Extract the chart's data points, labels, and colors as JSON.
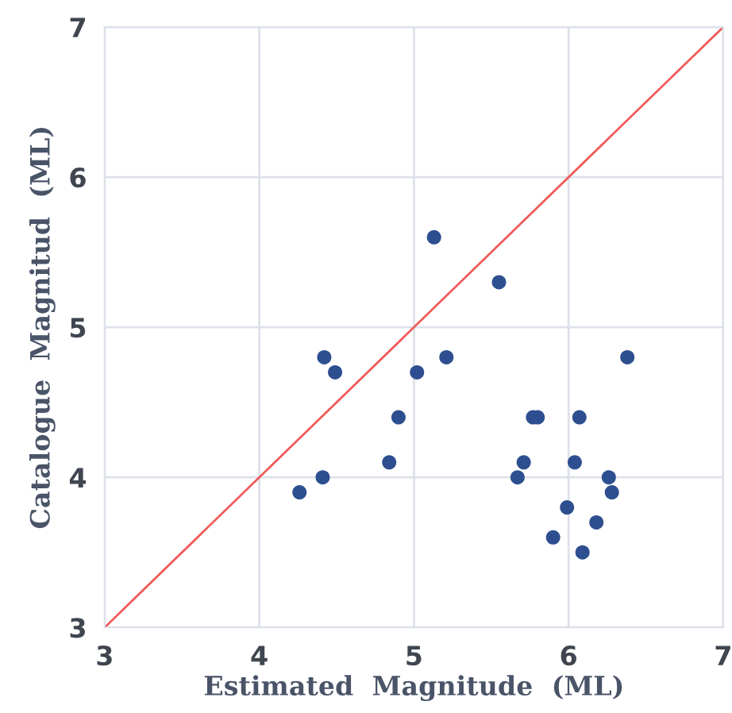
{
  "chart_data": {
    "type": "scatter",
    "xlabel": "Estimated  Magnitude  (ML)",
    "ylabel": "Catalogue  Magnitud  (ML)",
    "xlim": [
      3,
      7
    ],
    "ylim": [
      3,
      7
    ],
    "xticks": [
      3,
      4,
      5,
      6,
      7
    ],
    "yticks": [
      3,
      4,
      5,
      6,
      7
    ],
    "grid": true,
    "marker": "circle",
    "series": [
      {
        "color": "#2e4f8f",
        "x": [
          4.26,
          4.41,
          4.42,
          4.49,
          4.84,
          4.9,
          5.02,
          5.13,
          5.21,
          5.55,
          5.67,
          5.71,
          5.77,
          5.8,
          5.9,
          5.99,
          6.04,
          6.07,
          6.09,
          6.18,
          6.26,
          6.28,
          6.38
        ],
        "values": [
          3.9,
          4.0,
          4.8,
          4.7,
          4.1,
          4.4,
          4.7,
          5.6,
          4.8,
          5.3,
          4.0,
          4.1,
          4.4,
          4.4,
          3.6,
          3.8,
          4.1,
          4.4,
          3.5,
          3.7,
          4.0,
          3.9,
          4.8
        ]
      },
      {
        "type": "line",
        "color": "#f05a5a",
        "x": [
          3,
          7
        ],
        "values": [
          3,
          7
        ],
        "marker": "none"
      }
    ]
  }
}
